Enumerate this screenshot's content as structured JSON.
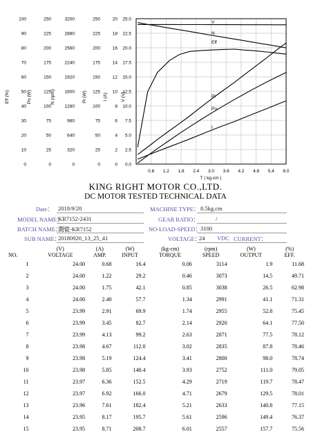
{
  "chart_data": {
    "type": "line",
    "xlabel": "T ( kg.cm )",
    "x_ticks": [
      "0.6",
      "1.2",
      "1.8",
      "2.4",
      "3.0",
      "3.6",
      "4.2",
      "4.8",
      "5.4",
      "6.0"
    ],
    "xlim": [
      0,
      6.0
    ],
    "y_axes": [
      {
        "label": "Eff (%)",
        "ticks": [
          "100",
          "90",
          "80",
          "70",
          "60",
          "50",
          "40",
          "30",
          "20",
          "10",
          "0"
        ]
      },
      {
        "label": "Po (W)",
        "ticks": [
          "250",
          "225",
          "200",
          "175",
          "150",
          "125",
          "100",
          "75",
          "50",
          "25",
          "0"
        ]
      },
      {
        "label": "N (rpm)",
        "ticks": [
          "3200",
          "2880",
          "2560",
          "2240",
          "1920",
          "1600",
          "1280",
          "960",
          "640",
          "320",
          "0"
        ]
      },
      {
        "label": "Pi (W)",
        "ticks": [
          "250",
          "225",
          "200",
          "175",
          "150",
          "125",
          "100",
          "75",
          "50",
          "25",
          "0"
        ]
      },
      {
        "label": "I (A)",
        "ticks": [
          "20",
          "18",
          "16",
          "14",
          "12",
          "10",
          "8",
          "6",
          "4",
          "2",
          "0"
        ]
      },
      {
        "label": "V (V)",
        "ticks": [
          "25.0",
          "22.5",
          "20.0",
          "17.5",
          "15.0",
          "12.5",
          "10.0",
          "7.5",
          "5.0",
          "2.5",
          "0.0"
        ]
      }
    ],
    "series": [
      {
        "name": "V",
        "x": [
          0.06,
          0.46,
          0.85,
          1.34,
          1.74,
          2.14,
          2.63,
          3.02,
          3.41,
          3.93,
          4.29,
          4.71,
          5.21,
          5.61,
          6.01
        ],
        "values": [
          24.0,
          24.0,
          24.0,
          24.0,
          23.99,
          23.99,
          23.99,
          23.98,
          23.98,
          23.98,
          23.97,
          23.97,
          23.96,
          23.95,
          23.95
        ],
        "unit_axis": "V (V)"
      },
      {
        "name": "N",
        "x": [
          0.06,
          0.46,
          0.85,
          1.34,
          1.74,
          2.14,
          2.63,
          3.02,
          3.41,
          3.93,
          4.29,
          4.71,
          5.21,
          5.61,
          6.01
        ],
        "values": [
          3114,
          3073,
          3038,
          2991,
          2955,
          2920,
          2871,
          2835,
          2800,
          2752,
          2719,
          2679,
          2633,
          2596,
          2557
        ],
        "unit_axis": "N (rpm)"
      },
      {
        "name": "Eff",
        "x": [
          0.06,
          0.46,
          0.85,
          1.34,
          1.74,
          2.14,
          2.63,
          3.02,
          3.41,
          3.93,
          4.29,
          4.71,
          5.21,
          5.61,
          6.01
        ],
        "values": [
          11.68,
          49.71,
          62.98,
          71.31,
          75.45,
          77.5,
          78.12,
          78.46,
          78.74,
          79.05,
          78.47,
          78.01,
          77.15,
          76.37,
          75.56
        ],
        "unit_axis": "Eff (%)"
      },
      {
        "name": "Pi",
        "x": [
          0.06,
          0.46,
          0.85,
          1.34,
          1.74,
          2.14,
          2.63,
          3.02,
          3.41,
          3.93,
          4.29,
          4.71,
          5.21,
          5.61,
          6.01
        ],
        "values": [
          16.4,
          29.2,
          42.1,
          57.7,
          69.9,
          82.7,
          99.2,
          112.0,
          124.4,
          140.4,
          152.5,
          166.0,
          182.4,
          195.7,
          208.7
        ],
        "unit_axis": "Pi (W)"
      },
      {
        "name": "Po",
        "x": [
          0.06,
          0.46,
          0.85,
          1.34,
          1.74,
          2.14,
          2.63,
          3.02,
          3.41,
          3.93,
          4.29,
          4.71,
          5.21,
          5.61,
          6.01
        ],
        "values": [
          1.9,
          14.5,
          26.5,
          41.1,
          52.8,
          64.1,
          77.5,
          87.8,
          98.0,
          111.0,
          119.7,
          129.5,
          140.8,
          149.4,
          157.7
        ],
        "unit_axis": "Po (W)"
      },
      {
        "name": "I",
        "x": [
          0.06,
          0.46,
          0.85,
          1.34,
          1.74,
          2.14,
          2.63,
          3.02,
          3.41,
          3.93,
          4.29,
          4.71,
          5.21,
          5.61,
          6.01
        ],
        "values": [
          0.68,
          1.22,
          1.75,
          2.4,
          2.91,
          3.45,
          4.13,
          4.67,
          5.19,
          5.85,
          6.36,
          6.92,
          7.61,
          8.17,
          8.71
        ],
        "unit_axis": "I (A)"
      }
    ],
    "grid": true
  },
  "report": {
    "company": "KING RIGHT MOTOR CO.,LTD.",
    "subtitle": "DC MOTOR TESTED TECHNICAL DATA",
    "date_label": "Date：",
    "date_value": "2018/9/20",
    "machine_type_label": "MACHINE TYPE：",
    "machine_type_value": "8.5kg.cm",
    "model_label": "MODEL NAME：",
    "model_value": "KR7152-2431",
    "gear_ratio_label": "GEAR RATIO：",
    "gear_ratio_value": "/",
    "batch_label": "BATCH NAME：",
    "batch_value": "測從-KR7152",
    "no_load_label": "NO-LOAD-SPEED：",
    "no_load_value": "3100",
    "sub_label": "SUB NAME：",
    "sub_value": "20180920_13_25_41",
    "voltage_label": "VOLTAGE：",
    "voltage_value": "24",
    "voltage_unit": "VDC",
    "current_label": "CURRENT："
  },
  "table": {
    "units": [
      "",
      "(V)",
      "(A)",
      "(W)",
      "(kg-cm)",
      "(rpm)",
      "(W)",
      "(%)"
    ],
    "headers": [
      "NO.",
      "VOLTAGE",
      "AMP.",
      "INPUT",
      "TORQUE",
      "SPEED",
      "OUTPUT",
      "EFF."
    ],
    "rows": [
      [
        "1",
        "24.00",
        "0.68",
        "16.4",
        "0.06",
        "3114",
        "1.9",
        "11.68"
      ],
      [
        "2",
        "24.00",
        "1.22",
        "29.2",
        "0.46",
        "3073",
        "14.5",
        "49.71"
      ],
      [
        "3",
        "24.00",
        "1.75",
        "42.1",
        "0.85",
        "3038",
        "26.5",
        "62.98"
      ],
      [
        "4",
        "24.00",
        "2.40",
        "57.7",
        "1.34",
        "2991",
        "41.1",
        "71.31"
      ],
      [
        "5",
        "23.99",
        "2.91",
        "69.9",
        "1.74",
        "2955",
        "52.8",
        "75.45"
      ],
      [
        "6",
        "23.99",
        "3.45",
        "82.7",
        "2.14",
        "2920",
        "64.1",
        "77.50"
      ],
      [
        "7",
        "23.99",
        "4.13",
        "99.2",
        "2.63",
        "2871",
        "77.5",
        "78.12"
      ],
      [
        "8",
        "23.98",
        "4.67",
        "112.0",
        "3.02",
        "2835",
        "87.8",
        "78.46"
      ],
      [
        "9",
        "23.98",
        "5.19",
        "124.4",
        "3.41",
        "2800",
        "98.0",
        "78.74"
      ],
      [
        "10",
        "23.98",
        "5.85",
        "140.4",
        "3.93",
        "2752",
        "111.0",
        "79.05"
      ],
      [
        "11",
        "23.97",
        "6.36",
        "152.5",
        "4.29",
        "2719",
        "119.7",
        "78.47"
      ],
      [
        "12",
        "23.97",
        "6.92",
        "166.0",
        "4.71",
        "2679",
        "129.5",
        "78.01"
      ],
      [
        "13",
        "23.96",
        "7.61",
        "182.4",
        "5.21",
        "2633",
        "140.8",
        "77.15"
      ],
      [
        "14",
        "23.95",
        "8.17",
        "195.7",
        "5.61",
        "2596",
        "149.4",
        "76.37"
      ],
      [
        "15",
        "23.95",
        "8.71",
        "208.7",
        "6.01",
        "2557",
        "157.7",
        "75.56"
      ]
    ]
  }
}
